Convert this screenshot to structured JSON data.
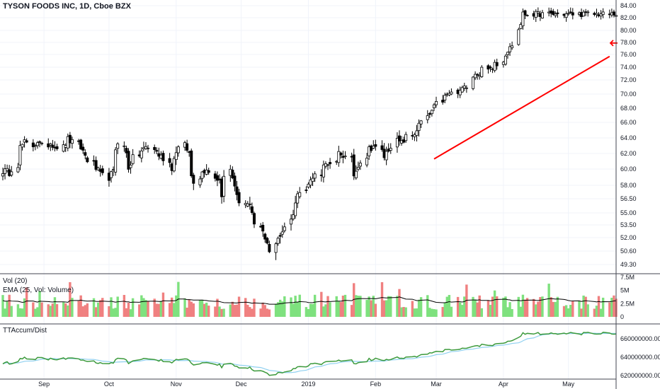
{
  "header": {
    "title": "TYSON FOODS INC, 1D, Cboe BZX"
  },
  "volume_panel": {
    "label": "Vol (20)",
    "ema_label": "EMA (25, Vol: Volume)",
    "y_ticks": [
      "7.5M",
      "5M",
      "2.5M",
      "0"
    ],
    "y_values": [
      7.5,
      5,
      2.5,
      0
    ]
  },
  "accum_panel": {
    "label": "TTAccum/Dist",
    "y_ticks": [
      "660000000.00",
      "640000000.00",
      "620000000.00"
    ],
    "y_values": [
      660,
      640,
      620
    ]
  },
  "price_axis": {
    "ticks": [
      "84.00",
      "82.00",
      "80.00",
      "78.00",
      "76.00",
      "74.00",
      "72.00",
      "70.00",
      "68.00",
      "66.00",
      "64.00",
      "62.00",
      "60.00",
      "58.00",
      "56.50",
      "55.00",
      "53.50",
      "52.00",
      "50.60",
      "49.30"
    ]
  },
  "x_axis": {
    "labels": [
      "Sep",
      "Oct",
      "Nov",
      "Dec",
      "2019",
      "Feb",
      "Mar",
      "Apr",
      "May"
    ]
  },
  "colors": {
    "up": "#26a69a",
    "down": "#ef5350",
    "vol_up": "#7ee17e",
    "vol_down": "#f08080",
    "trend": "#ff0000",
    "accum_line": "#3c9a3c",
    "accum_ma": "#8fd0f0"
  },
  "chart_data": {
    "type": "candlestick",
    "x_start": "2018-08-13",
    "x_end": "2019-05-23",
    "ylim": [
      49,
      85
    ],
    "price_anchors": [
      [
        0,
        59.8
      ],
      [
        3,
        59.6
      ],
      [
        5,
        60.6
      ],
      [
        6,
        62.8
      ],
      [
        8,
        63.4
      ],
      [
        10,
        63.0
      ],
      [
        12,
        63.6
      ],
      [
        14,
        62.9
      ],
      [
        16,
        63.4
      ],
      [
        18,
        63.0
      ],
      [
        20,
        62.8
      ],
      [
        22,
        63.8
      ],
      [
        25,
        63.2
      ],
      [
        27,
        62.3
      ],
      [
        29,
        61.2
      ],
      [
        31,
        60.1
      ],
      [
        33,
        59.3
      ],
      [
        35,
        59.0
      ],
      [
        37,
        59.6
      ],
      [
        38,
        62.6
      ],
      [
        39,
        63.6
      ],
      [
        41,
        62.0
      ],
      [
        42,
        60.2
      ],
      [
        44,
        61.4
      ],
      [
        46,
        62.3
      ],
      [
        48,
        62.8
      ],
      [
        50,
        62.6
      ],
      [
        52,
        61.8
      ],
      [
        54,
        61.4
      ],
      [
        56,
        60.2
      ],
      [
        58,
        62.4
      ],
      [
        60,
        63.0
      ],
      [
        62,
        62.1
      ],
      [
        63,
        59.2
      ],
      [
        64,
        58.6
      ],
      [
        66,
        59.6
      ],
      [
        68,
        60.2
      ],
      [
        70,
        59.1
      ],
      [
        72,
        58.6
      ],
      [
        73,
        57.1
      ],
      [
        74,
        58.9
      ],
      [
        75,
        59.9
      ],
      [
        77,
        58.1
      ],
      [
        78,
        56.6
      ],
      [
        80,
        56.1
      ],
      [
        82,
        55.6
      ],
      [
        84,
        53.6
      ],
      [
        86,
        52.6
      ],
      [
        88,
        51.6
      ],
      [
        89,
        50.6
      ],
      [
        90,
        51.1
      ],
      [
        91,
        51.9
      ],
      [
        93,
        52.8
      ],
      [
        95,
        54.1
      ],
      [
        97,
        56.1
      ],
      [
        99,
        57.6
      ],
      [
        101,
        58.2
      ],
      [
        103,
        58.9
      ],
      [
        105,
        59.6
      ],
      [
        107,
        61.1
      ],
      [
        108,
        60.3
      ],
      [
        110,
        60.6
      ],
      [
        111,
        62.1
      ],
      [
        113,
        61.8
      ],
      [
        115,
        61.1
      ],
      [
        116,
        59.3
      ],
      [
        117,
        59.8
      ],
      [
        118,
        60.6
      ],
      [
        120,
        61.6
      ],
      [
        121,
        62.6
      ],
      [
        123,
        63.0
      ],
      [
        125,
        62.3
      ],
      [
        126,
        61.6
      ],
      [
        128,
        62.6
      ],
      [
        130,
        63.6
      ],
      [
        132,
        63.3
      ],
      [
        134,
        64.1
      ],
      [
        136,
        64.6
      ],
      [
        138,
        65.6
      ],
      [
        140,
        66.6
      ],
      [
        142,
        67.6
      ],
      [
        144,
        68.6
      ],
      [
        146,
        69.6
      ],
      [
        148,
        70.1
      ],
      [
        150,
        70.1
      ],
      [
        152,
        70.6
      ],
      [
        153,
        71.6
      ],
      [
        154,
        71.2
      ],
      [
        155,
        72.6
      ],
      [
        156,
        73.1
      ],
      [
        157,
        72.6
      ],
      [
        158,
        73.1
      ],
      [
        159,
        73.6
      ],
      [
        160,
        73.6
      ],
      [
        162,
        74.1
      ],
      [
        163,
        75.1
      ],
      [
        164,
        74.4
      ],
      [
        165,
        75.1
      ],
      [
        166,
        76.1
      ],
      [
        167,
        76.6
      ],
      [
        168,
        77.1
      ],
      [
        169,
        77.6
      ],
      [
        170,
        80.1
      ],
      [
        171,
        81.1
      ],
      [
        172,
        82.6
      ]
    ],
    "annotations": {
      "trendline": {
        "from": [
          "2019-02-28",
          61.3
        ],
        "to": [
          "2019-05-20",
          75.7
        ]
      },
      "arrow": {
        "points_to": [
          "2019-05-23",
          77.9
        ],
        "direction": "left"
      }
    }
  }
}
